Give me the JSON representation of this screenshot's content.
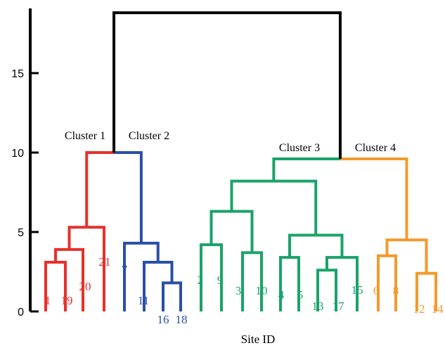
{
  "chart_data": {
    "type": "dendrogram",
    "title": "",
    "xlabel": "Site ID",
    "ylabel": "",
    "ylim": [
      0,
      19
    ],
    "y_ticks": [
      0,
      5,
      10,
      15
    ],
    "leaf_order": [
      "1",
      "19",
      "20",
      "21",
      "7",
      "11",
      "16",
      "18",
      "2",
      "9",
      "3",
      "10",
      "4",
      "5",
      "13",
      "17",
      "15",
      "6",
      "8",
      "12",
      "14"
    ],
    "clusters": [
      {
        "name": "Cluster 1",
        "color": "#e8302a",
        "leaves": [
          "1",
          "19",
          "20",
          "21"
        ]
      },
      {
        "name": "Cluster 2",
        "color": "#2a4fa6",
        "leaves": [
          "7",
          "11",
          "16",
          "18"
        ]
      },
      {
        "name": "Cluster 3",
        "color": "#1aa36a",
        "leaves": [
          "2",
          "9",
          "3",
          "10",
          "4",
          "5",
          "13",
          "17",
          "15"
        ]
      },
      {
        "name": "Cluster 4",
        "color": "#f39a2c",
        "leaves": [
          "6",
          "8",
          "12",
          "14"
        ]
      }
    ],
    "merges": [
      {
        "children": [
          "1",
          "19"
        ],
        "height": 3.1,
        "color": "#e8302a"
      },
      {
        "children": [
          "1-19",
          "20"
        ],
        "height": 3.9,
        "color": "#e8302a"
      },
      {
        "children": [
          "1-20",
          "21"
        ],
        "height": 5.3,
        "color": "#e8302a"
      },
      {
        "children": [
          "16",
          "18"
        ],
        "height": 1.8,
        "color": "#2a4fa6"
      },
      {
        "children": [
          "11",
          "16-18"
        ],
        "height": 3.1,
        "color": "#2a4fa6"
      },
      {
        "children": [
          "7",
          "11-18"
        ],
        "height": 4.3,
        "color": "#2a4fa6"
      },
      {
        "children": [
          "C1",
          "C2"
        ],
        "height": 10.0,
        "color": "#e8302a|#2a4fa6"
      },
      {
        "children": [
          "2",
          "9"
        ],
        "height": 4.2,
        "color": "#1aa36a"
      },
      {
        "children": [
          "3",
          "10"
        ],
        "height": 3.7,
        "color": "#1aa36a"
      },
      {
        "children": [
          "2-9",
          "3-10"
        ],
        "height": 6.3,
        "color": "#1aa36a"
      },
      {
        "children": [
          "4",
          "5"
        ],
        "height": 3.4,
        "color": "#1aa36a"
      },
      {
        "children": [
          "13",
          "17"
        ],
        "height": 2.6,
        "color": "#1aa36a"
      },
      {
        "children": [
          "13-17",
          "15"
        ],
        "height": 3.4,
        "color": "#1aa36a"
      },
      {
        "children": [
          "4-5",
          "13-15"
        ],
        "height": 4.8,
        "color": "#1aa36a"
      },
      {
        "children": [
          "2-10",
          "4-15"
        ],
        "height": 8.2,
        "color": "#1aa36a"
      },
      {
        "children": [
          "6",
          "8"
        ],
        "height": 3.5,
        "color": "#f39a2c"
      },
      {
        "children": [
          "12",
          "14"
        ],
        "height": 2.4,
        "color": "#f39a2c"
      },
      {
        "children": [
          "6-8",
          "12-14"
        ],
        "height": 4.5,
        "color": "#f39a2c"
      },
      {
        "children": [
          "C3",
          "C4"
        ],
        "height": 9.6,
        "color": "#1aa36a|#f39a2c"
      },
      {
        "children": [
          "C1-C2",
          "C3-C4"
        ],
        "height": 18.8,
        "color": "#000000"
      }
    ]
  }
}
